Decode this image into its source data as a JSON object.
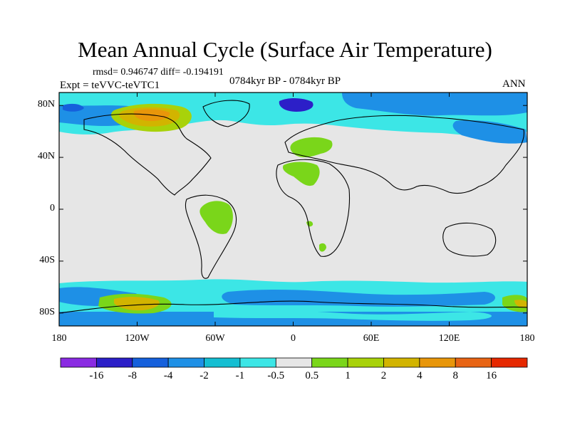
{
  "title": "Mean Annual Cycle (Surface Air Temperature)",
  "stats": "rmsd= 0.946747 diff= -0.194191",
  "experiment": "Expt = teVVC-teVTC1",
  "period": "0784kyr BP - 0784kyr BP",
  "season": "ANN",
  "map": {
    "projection": "cylindrical equidistant",
    "lon_range": [
      -180,
      180
    ],
    "lat_range": [
      -90,
      90
    ],
    "lat_ticks": [
      {
        "value": 80,
        "label": "80N"
      },
      {
        "value": 40,
        "label": "40N"
      },
      {
        "value": 0,
        "label": "0"
      },
      {
        "value": -40,
        "label": "40S"
      },
      {
        "value": -80,
        "label": "80S"
      }
    ],
    "lon_ticks": [
      {
        "value": -180,
        "label": "180"
      },
      {
        "value": -120,
        "label": "120W"
      },
      {
        "value": -60,
        "label": "60W"
      },
      {
        "value": 0,
        "label": "0"
      },
      {
        "value": 60,
        "label": "60E"
      },
      {
        "value": 120,
        "label": "120E"
      },
      {
        "value": 180,
        "label": "180"
      }
    ]
  },
  "colorbar": {
    "colors": [
      "#8a2be2",
      "#2c1fc8",
      "#1560dc",
      "#1e90e6",
      "#14bed2",
      "#3ce6e6",
      "#e6e6e6",
      "#7ad61a",
      "#a8d20a",
      "#d2b400",
      "#e8960a",
      "#e86414",
      "#e62800"
    ],
    "labels": [
      "-16",
      "-8",
      "-4",
      "-2",
      "-1",
      "-0.5",
      "0.5",
      "1",
      "2",
      "4",
      "8",
      "16"
    ]
  }
}
